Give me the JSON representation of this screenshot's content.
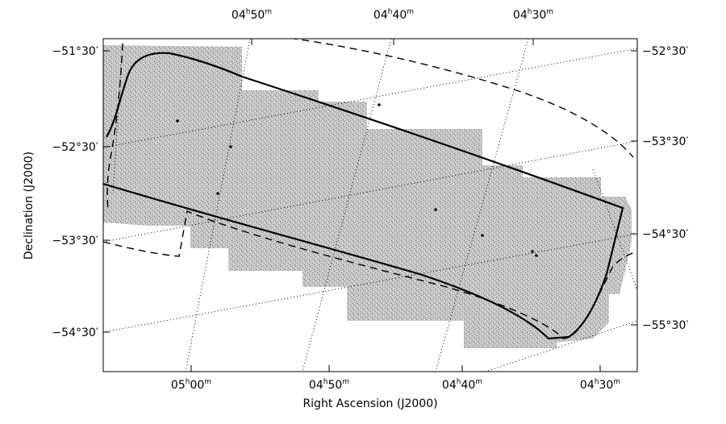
{
  "chart_data": {
    "type": "map",
    "xlabel": "Right Ascension (J2000)",
    "ylabel": "Declination (J2000)",
    "bottom_ticks": [
      {
        "h": "05",
        "m": "00"
      },
      {
        "h": "04",
        "m": "50"
      },
      {
        "h": "04",
        "m": "40"
      },
      {
        "h": "04",
        "m": "30"
      }
    ],
    "top_ticks": [
      {
        "h": "04",
        "m": "50"
      },
      {
        "h": "04",
        "m": "40"
      },
      {
        "h": "04",
        "m": "30"
      }
    ],
    "left_ticks": [
      {
        "d": "−51",
        "m": "30"
      },
      {
        "d": "−52",
        "m": "30"
      },
      {
        "d": "−53",
        "m": "30"
      },
      {
        "d": "−54",
        "m": "30"
      }
    ],
    "right_ticks": [
      {
        "d": "−52",
        "m": "30"
      },
      {
        "d": "−53",
        "m": "30"
      },
      {
        "d": "−54",
        "m": "30"
      },
      {
        "d": "−55",
        "m": "30"
      }
    ],
    "grid": true,
    "colors": {
      "coverage": "#bdbdbd",
      "lines": "#000000"
    }
  }
}
